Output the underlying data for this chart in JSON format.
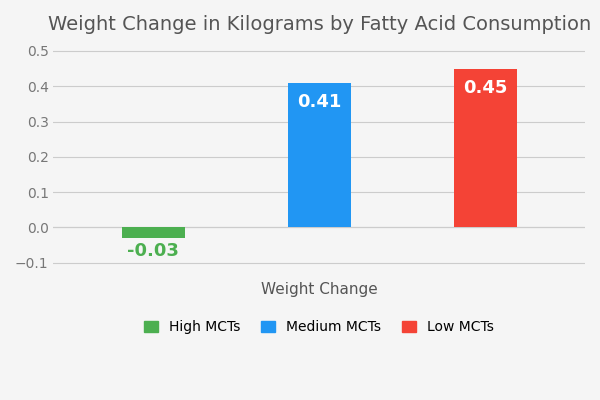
{
  "title": "Weight Change in Kilograms by Fatty Acid Consumption",
  "xlabel": "Weight Change",
  "categories": [
    "High MCTs",
    "Medium MCTs",
    "Low MCTs"
  ],
  "values": [
    -0.03,
    0.41,
    0.45
  ],
  "bar_colors": [
    "#4CAF50",
    "#2196F3",
    "#F44336"
  ],
  "label_colors": [
    "#4CAF50",
    "#ffffff",
    "#ffffff"
  ],
  "ylim": [
    -0.13,
    0.52
  ],
  "yticks": [
    -0.1,
    0.0,
    0.1,
    0.2,
    0.3,
    0.4,
    0.5
  ],
  "background_color": "#f5f5f5",
  "title_fontsize": 14,
  "xlabel_fontsize": 11,
  "bar_width": 0.38,
  "label_fontsize": 13,
  "legend_labels": [
    "High MCTs",
    "Medium MCTs",
    "Low MCTs"
  ],
  "legend_colors": [
    "#4CAF50",
    "#2196F3",
    "#F44336"
  ]
}
